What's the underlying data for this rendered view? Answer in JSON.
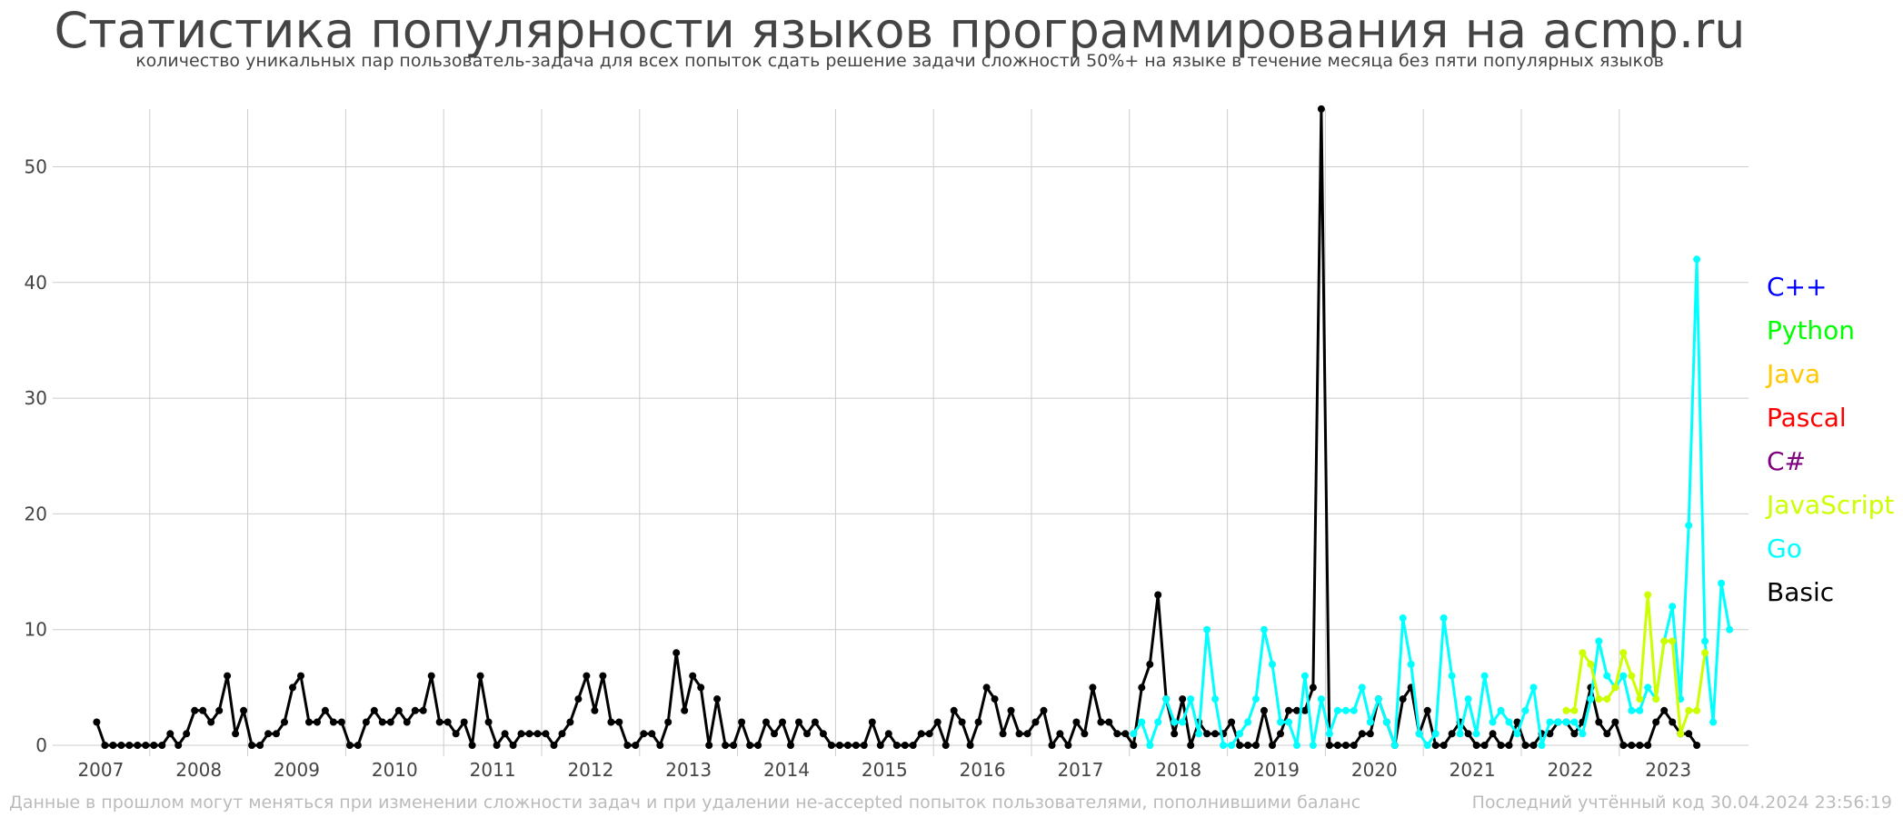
{
  "chart_data": {
    "type": "line",
    "title": "Статистика популярности языков программирования на acmp.ru",
    "subtitle": "количество уникальных пар пользователь-задача для всех попыток сдать решение задачи сложности 50%+ на языке в течение месяца без пяти популярных языков",
    "xlabel": "",
    "ylabel": "",
    "x_ticks": [
      "2007",
      "2008",
      "2009",
      "2010",
      "2011",
      "2012",
      "2013",
      "2014",
      "2015",
      "2016",
      "2017",
      "2018",
      "2019",
      "2020",
      "2021",
      "2022",
      "2023"
    ],
    "y_ticks": [
      0,
      10,
      20,
      30,
      40,
      50
    ],
    "ylim": [
      0,
      55
    ],
    "grid": true,
    "legend_position": "right",
    "legend": [
      {
        "name": "C++",
        "color": "#0000ff"
      },
      {
        "name": "Python",
        "color": "#00ff00"
      },
      {
        "name": "Java",
        "color": "#ffc800"
      },
      {
        "name": "Pascal",
        "color": "#ff0000"
      },
      {
        "name": "C#",
        "color": "#800080"
      },
      {
        "name": "JavaScript",
        "color": "#ccff00"
      },
      {
        "name": "Go",
        "color": "#00ffff"
      },
      {
        "name": "Basic",
        "color": "#000000"
      }
    ],
    "series": [
      {
        "name": "Basic",
        "color": "#000000",
        "start": "2007-06",
        "values": [
          2,
          0,
          0,
          0,
          0,
          0,
          0,
          0,
          0,
          1,
          0,
          1,
          3,
          3,
          2,
          3,
          6,
          1,
          3,
          0,
          0,
          1,
          1,
          2,
          5,
          6,
          2,
          2,
          3,
          2,
          2,
          0,
          0,
          2,
          3,
          2,
          2,
          3,
          2,
          3,
          3,
          6,
          2,
          2,
          1,
          2,
          0,
          6,
          2,
          0,
          1,
          0,
          1,
          1,
          1,
          1,
          0,
          1,
          2,
          4,
          6,
          3,
          6,
          2,
          2,
          0,
          0,
          1,
          1,
          0,
          2,
          8,
          3,
          6,
          5,
          0,
          4,
          0,
          0,
          2,
          0,
          0,
          2,
          1,
          2,
          0,
          2,
          1,
          2,
          1,
          0,
          0,
          0,
          0,
          0,
          2,
          0,
          1,
          0,
          0,
          0,
          1,
          1,
          2,
          0,
          3,
          2,
          0,
          2,
          5,
          4,
          1,
          3,
          1,
          1,
          2,
          3,
          0,
          1,
          0,
          2,
          1,
          5,
          2,
          2,
          1,
          1,
          0,
          5,
          7,
          13,
          4,
          1,
          4,
          0,
          2,
          1,
          1,
          1,
          2,
          0,
          0,
          0,
          3,
          0,
          1,
          3,
          3,
          3,
          5,
          55,
          0,
          0,
          0,
          0,
          1,
          1,
          4,
          2,
          0,
          4,
          5,
          1,
          3,
          0,
          0,
          1,
          2,
          1,
          0,
          0,
          1,
          0,
          0,
          2,
          0,
          0,
          1,
          1,
          2,
          2,
          1,
          2,
          5,
          2,
          1,
          2,
          0,
          0,
          0,
          0,
          2,
          3,
          2,
          1,
          1,
          0
        ]
      },
      {
        "name": "Go",
        "color": "#00ffff",
        "start": "2018-01",
        "values": [
          1,
          2,
          0,
          2,
          4,
          2,
          2,
          4,
          1,
          10,
          4,
          0,
          0,
          1,
          2,
          4,
          10,
          7,
          2,
          2,
          0,
          6,
          0,
          4,
          1,
          3,
          3,
          3,
          5,
          2,
          4,
          2,
          0,
          11,
          7,
          1,
          0,
          1,
          11,
          6,
          1,
          4,
          1,
          6,
          2,
          3,
          2,
          1,
          3,
          5,
          0,
          2,
          2,
          2,
          2,
          1,
          4,
          9,
          6,
          5,
          6,
          3,
          3,
          5,
          4,
          9,
          12,
          4,
          19,
          42,
          9,
          2,
          14,
          10
        ]
      },
      {
        "name": "JavaScript",
        "color": "#ccff00",
        "start": "2022-06",
        "values": [
          3,
          3,
          8,
          7,
          4,
          4,
          5,
          8,
          6,
          4,
          13,
          4,
          9,
          9,
          1,
          3,
          3,
          8
        ]
      }
    ]
  },
  "footer": {
    "left": "Данные в прошлом могут меняться при изменении сложности задач и при удалении не-accepted попыток пользователями, пополнившими баланс",
    "right": "Последний учтённый код 30.04.2024 23:56:19"
  }
}
